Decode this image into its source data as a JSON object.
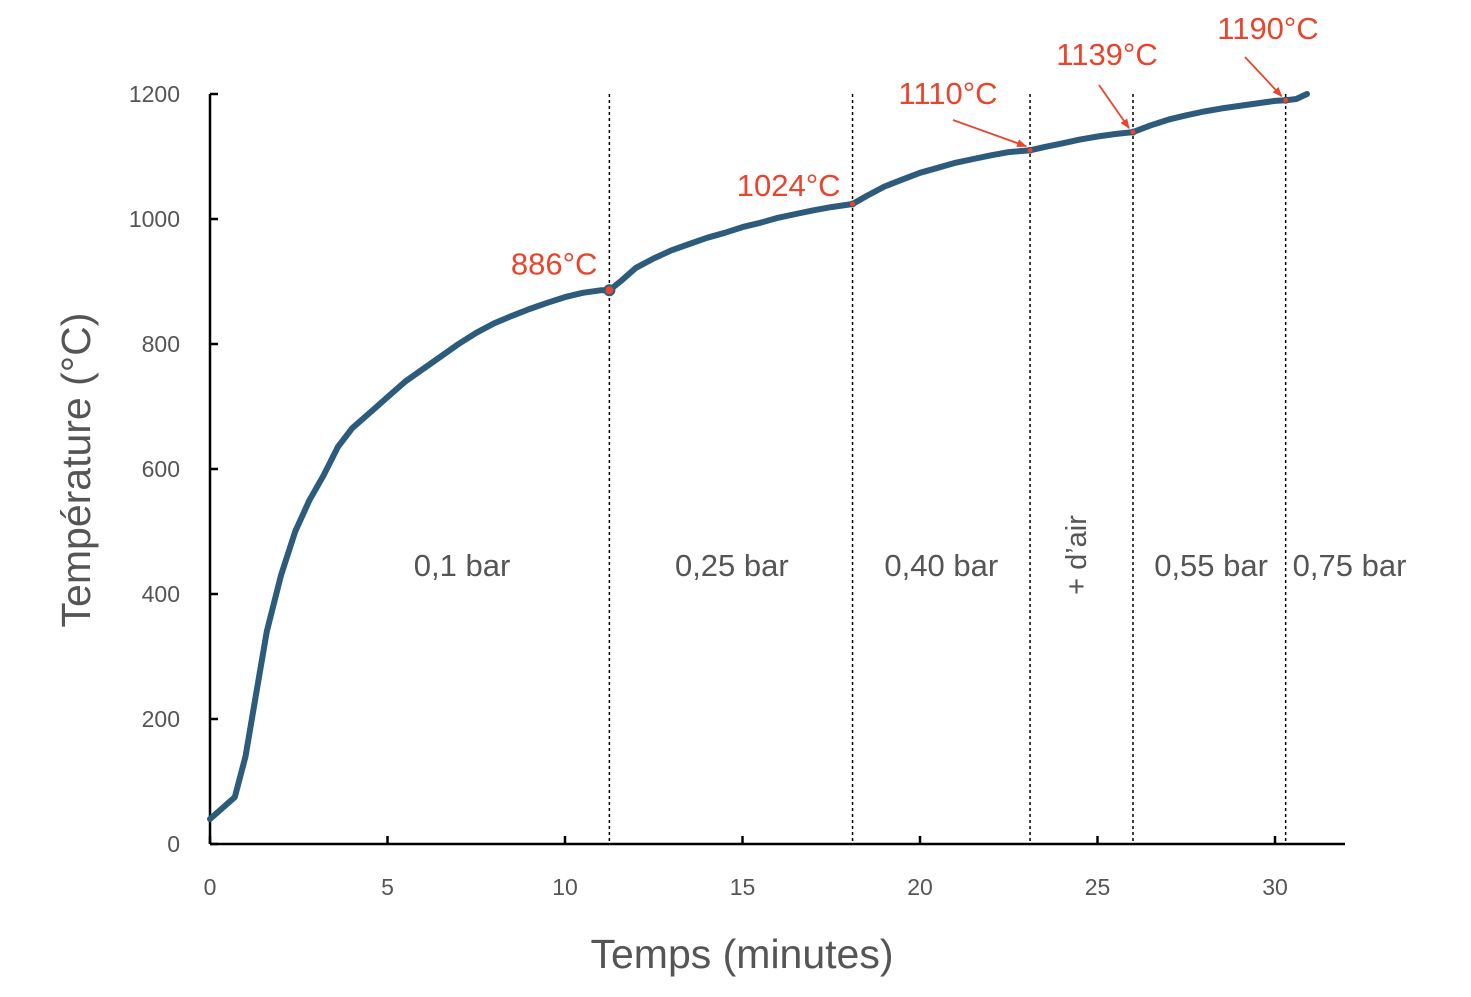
{
  "chart_data": {
    "type": "line",
    "title": "",
    "xlabel": "Temps (minutes)",
    "ylabel": "Température (°C)",
    "xlim": [
      0,
      32
    ],
    "ylim": [
      0,
      1200
    ],
    "xticks": [
      0,
      5,
      10,
      15,
      20,
      25,
      30
    ],
    "yticks": [
      0,
      200,
      400,
      600,
      800,
      1000,
      1200
    ],
    "grid": false,
    "legend": "none",
    "colors": {
      "line": "#2c5b7c",
      "annotation": "#e8452c",
      "axis": "#000000",
      "tick_label": "#555555",
      "region_label": "#555555",
      "axis_label": "#555555"
    },
    "series": [
      {
        "x": [
          0,
          0.3,
          0.7,
          1.0,
          1.3,
          1.6,
          2.0,
          2.4,
          2.8,
          3.2,
          3.6,
          4.0,
          4.5,
          5.0,
          5.5,
          6.0,
          6.5,
          7.0,
          7.5,
          8.0,
          8.5,
          9.0,
          9.5,
          10.0,
          10.5,
          11.0,
          11.25,
          11.6,
          12.0,
          12.5,
          13.0,
          13.5,
          14.0,
          14.5,
          15.0,
          15.5,
          16.0,
          16.5,
          17.0,
          17.5,
          18.1,
          18.5,
          19.0,
          19.5,
          20.0,
          20.5,
          21.0,
          21.5,
          22.0,
          22.5,
          23.1,
          23.5,
          24.0,
          24.5,
          25.0,
          25.5,
          26.0,
          26.5,
          27.0,
          27.5,
          28.0,
          28.5,
          29.0,
          29.5,
          30.0,
          30.3,
          30.6,
          30.9
        ],
        "y": [
          40,
          55,
          75,
          140,
          240,
          340,
          430,
          500,
          550,
          590,
          635,
          665,
          690,
          715,
          740,
          760,
          780,
          800,
          818,
          833,
          845,
          856,
          866,
          875,
          882,
          886,
          886,
          902,
          922,
          937,
          950,
          960,
          970,
          978,
          987,
          994,
          1002,
          1008,
          1014,
          1019,
          1024,
          1037,
          1052,
          1063,
          1074,
          1082,
          1090,
          1096,
          1102,
          1107,
          1110,
          1115,
          1121,
          1127,
          1132,
          1136,
          1139,
          1150,
          1159,
          1166,
          1172,
          1177,
          1181,
          1185,
          1189,
          1190,
          1192,
          1200
        ]
      }
    ],
    "boundaries": [
      11.25,
      18.1,
      23.1,
      26.0,
      30.3
    ],
    "points": [
      {
        "x": 11.25,
        "y": 886,
        "label": "886°C"
      },
      {
        "x": 18.1,
        "y": 1024,
        "label": "1024°C"
      },
      {
        "x": 23.1,
        "y": 1110,
        "label": "1110°C"
      },
      {
        "x": 26.0,
        "y": 1139,
        "label": "1139°C"
      },
      {
        "x": 30.3,
        "y": 1190,
        "label": "1190°C"
      }
    ],
    "regions": [
      {
        "label": "0,1 bar",
        "x": 7.1
      },
      {
        "label": "0,25 bar",
        "x": 14.7
      },
      {
        "label": "0,40 bar",
        "x": 20.6
      },
      {
        "label": "+ d’air",
        "x": 24.4,
        "vertical": true
      },
      {
        "label": "0,55 bar",
        "x": 28.2
      },
      {
        "label": "0,75 bar",
        "x": 32.1
      }
    ]
  }
}
